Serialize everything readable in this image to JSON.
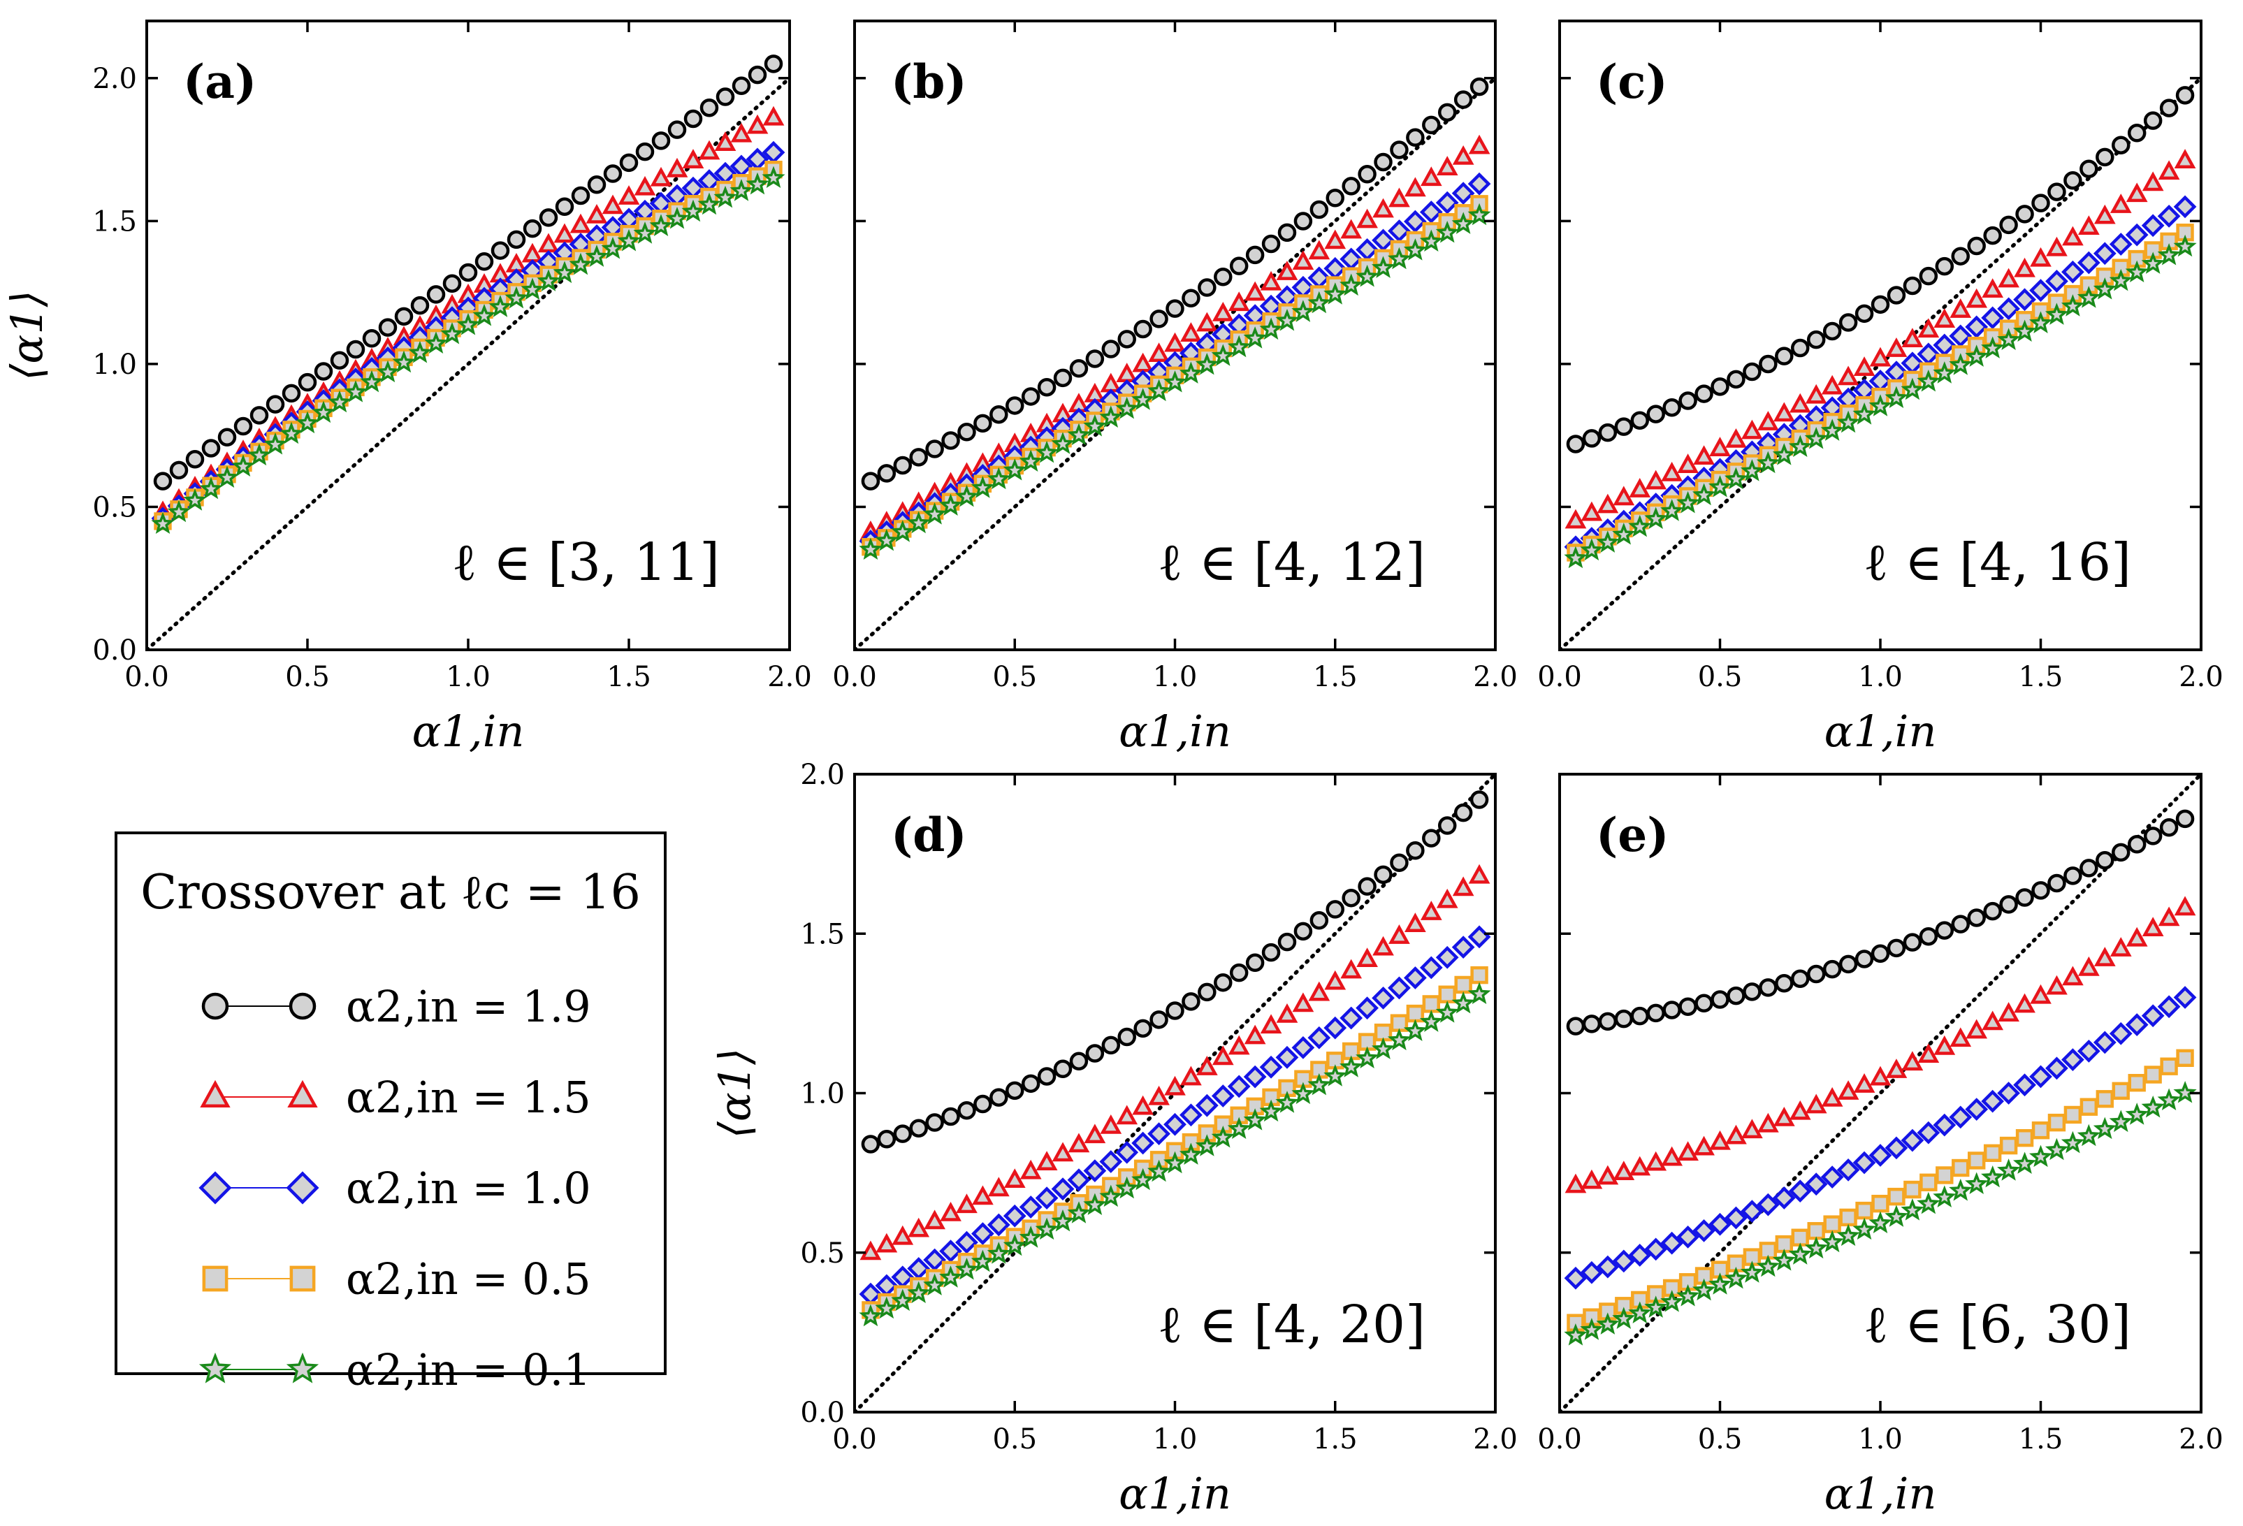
{
  "figure": {
    "legend": {
      "title": "Crossover at ℓc = 16",
      "entries": [
        {
          "label": "α2,in = 1.9",
          "marker": "circle",
          "color": "#000000"
        },
        {
          "label": "α2,in = 1.5",
          "marker": "triangle",
          "color": "#e8141b"
        },
        {
          "label": "α2,in = 1.0",
          "marker": "diamond",
          "color": "#1414e6"
        },
        {
          "label": "α2,in = 0.5",
          "marker": "square",
          "color": "#f5a623"
        },
        {
          "label": "α2,in = 0.1",
          "marker": "star",
          "color": "#1a8a1a"
        }
      ],
      "marker_face": "#d3d3d3"
    }
  },
  "chart_data": [
    {
      "type": "scatter",
      "panel": "(a)",
      "range_label": "ℓ ∈ [3, 11]",
      "xlabel": "α1,in",
      "ylabel": "⟨α1⟩",
      "xlim": [
        0.0,
        2.0
      ],
      "ylim": [
        0.0,
        2.2
      ],
      "xticks": [
        "0.0",
        "0.5",
        "1.0",
        "1.5",
        "2.0"
      ],
      "yticks": [
        "0.0",
        "0.5",
        "1.0",
        "1.5",
        "2.0"
      ],
      "show_yticklabels": true,
      "x_range": [
        0.05,
        1.95
      ],
      "n_points": 39,
      "reference_line": "y = x",
      "series": [
        {
          "name": "α2,in = 1.9",
          "y_start": 0.59,
          "y_end": 2.05,
          "shape": 0.0
        },
        {
          "name": "α2,in = 1.5",
          "y_start": 0.48,
          "y_end": 1.86,
          "shape": 0.2
        },
        {
          "name": "α2,in = 1.0",
          "y_start": 0.46,
          "y_end": 1.74,
          "shape": 0.3
        },
        {
          "name": "α2,in = 0.5",
          "y_start": 0.45,
          "y_end": 1.68,
          "shape": 0.3
        },
        {
          "name": "α2,in = 0.1",
          "y_start": 0.44,
          "y_end": 1.65,
          "shape": 0.3
        }
      ]
    },
    {
      "type": "scatter",
      "panel": "(b)",
      "range_label": "ℓ ∈ [4, 12]",
      "xlabel": "α1,in",
      "ylabel": "",
      "xlim": [
        0.0,
        2.0
      ],
      "ylim": [
        0.0,
        2.2
      ],
      "xticks": [
        "0.0",
        "0.5",
        "1.0",
        "1.5",
        "2.0"
      ],
      "yticks": [
        "0.0",
        "0.5",
        "1.0",
        "1.5",
        "2.0"
      ],
      "show_yticklabels": false,
      "x_range": [
        0.05,
        1.95
      ],
      "n_points": 39,
      "reference_line": "y = x",
      "series": [
        {
          "name": "α2,in = 1.9",
          "y_start": 0.59,
          "y_end": 1.97,
          "shape": -0.25
        },
        {
          "name": "α2,in = 1.5",
          "y_start": 0.41,
          "y_end": 1.76,
          "shape": -0.05
        },
        {
          "name": "α2,in = 1.0",
          "y_start": 0.38,
          "y_end": 1.63,
          "shape": 0.0
        },
        {
          "name": "α2,in = 0.5",
          "y_start": 0.36,
          "y_end": 1.56,
          "shape": 0.0
        },
        {
          "name": "α2,in = 0.1",
          "y_start": 0.35,
          "y_end": 1.52,
          "shape": 0.0
        }
      ]
    },
    {
      "type": "scatter",
      "panel": "(c)",
      "range_label": "ℓ ∈ [4, 16]",
      "xlabel": "α1,in",
      "ylabel": "",
      "xlim": [
        0.0,
        2.0
      ],
      "ylim": [
        0.0,
        2.2
      ],
      "xticks": [
        "0.0",
        "0.5",
        "1.0",
        "1.5",
        "2.0"
      ],
      "yticks": [
        "0.0",
        "0.5",
        "1.0",
        "1.5",
        "2.0"
      ],
      "show_yticklabels": false,
      "x_range": [
        0.05,
        1.95
      ],
      "n_points": 39,
      "reference_line": "y = x",
      "series": [
        {
          "name": "α2,in = 1.9",
          "y_start": 0.72,
          "y_end": 1.94,
          "shape": -0.4
        },
        {
          "name": "α2,in = 1.5",
          "y_start": 0.45,
          "y_end": 1.71,
          "shape": -0.2
        },
        {
          "name": "α2,in = 1.0",
          "y_start": 0.36,
          "y_end": 1.55,
          "shape": -0.05
        },
        {
          "name": "α2,in = 0.5",
          "y_start": 0.34,
          "y_end": 1.46,
          "shape": -0.05
        },
        {
          "name": "α2,in = 0.1",
          "y_start": 0.32,
          "y_end": 1.41,
          "shape": -0.05
        }
      ]
    },
    {
      "type": "scatter",
      "panel": "(d)",
      "range_label": "ℓ ∈ [4, 20]",
      "xlabel": "α1,in",
      "ylabel": "⟨α1⟩",
      "xlim": [
        0.0,
        2.0
      ],
      "ylim": [
        0.0,
        2.0
      ],
      "xticks": [
        "0.0",
        "0.5",
        "1.0",
        "1.5",
        "2.0"
      ],
      "yticks": [
        "0.0",
        "0.5",
        "1.0",
        "1.5",
        "2.0"
      ],
      "show_yticklabels": true,
      "x_range": [
        0.05,
        1.95
      ],
      "n_points": 39,
      "reference_line": "y = x",
      "series": [
        {
          "name": "α2,in = 1.9",
          "y_start": 0.84,
          "y_end": 1.92,
          "shape": -0.45
        },
        {
          "name": "α2,in = 1.5",
          "y_start": 0.5,
          "y_end": 1.68,
          "shape": -0.25
        },
        {
          "name": "α2,in = 1.0",
          "y_start": 0.37,
          "y_end": 1.49,
          "shape": -0.1
        },
        {
          "name": "α2,in = 0.5",
          "y_start": 0.32,
          "y_end": 1.37,
          "shape": -0.1
        },
        {
          "name": "α2,in = 0.1",
          "y_start": 0.3,
          "y_end": 1.31,
          "shape": -0.1
        }
      ]
    },
    {
      "type": "scatter",
      "panel": "(e)",
      "range_label": "ℓ ∈ [6, 30]",
      "xlabel": "α1,in",
      "ylabel": "",
      "xlim": [
        0.0,
        2.0
      ],
      "ylim": [
        0.0,
        2.0
      ],
      "xticks": [
        "0.0",
        "0.5",
        "1.0",
        "1.5",
        "2.0"
      ],
      "yticks": [
        "0.0",
        "0.5",
        "1.0",
        "1.5",
        "2.0"
      ],
      "show_yticklabels": false,
      "x_range": [
        0.05,
        1.95
      ],
      "n_points": 39,
      "reference_line": "y = x",
      "series": [
        {
          "name": "α2,in = 1.9",
          "y_start": 1.21,
          "y_end": 1.86,
          "shape": -0.6
        },
        {
          "name": "α2,in = 1.5",
          "y_start": 0.71,
          "y_end": 1.58,
          "shape": -0.45
        },
        {
          "name": "α2,in = 1.0",
          "y_start": 0.42,
          "y_end": 1.3,
          "shape": -0.25
        },
        {
          "name": "α2,in = 0.5",
          "y_start": 0.28,
          "y_end": 1.11,
          "shape": -0.2
        },
        {
          "name": "α2,in = 0.1",
          "y_start": 0.24,
          "y_end": 1.0,
          "shape": -0.15
        }
      ]
    }
  ]
}
